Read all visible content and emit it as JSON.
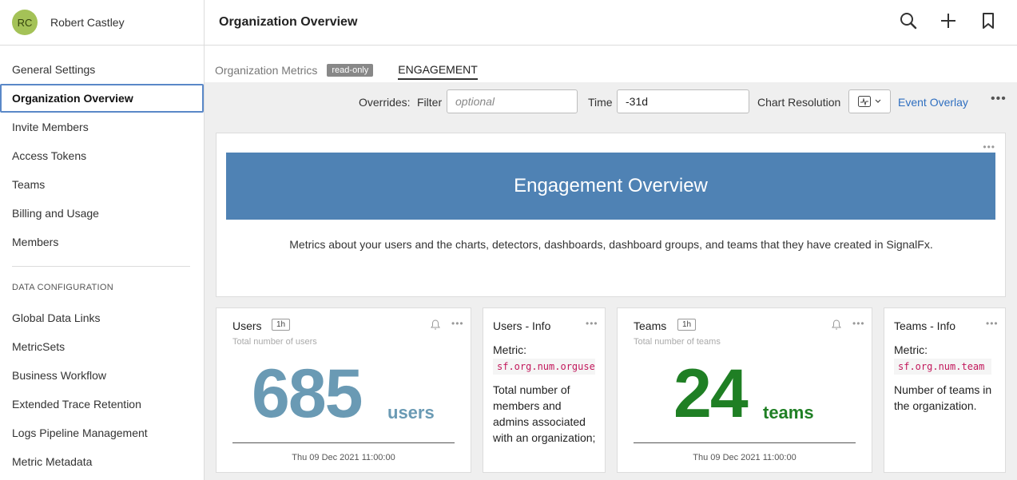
{
  "user": {
    "initials": "RC",
    "name": "Robert Castley"
  },
  "header": {
    "title": "Organization Overview"
  },
  "sidebar": {
    "items": [
      {
        "label": "General Settings"
      },
      {
        "label": "Organization Overview"
      },
      {
        "label": "Invite Members"
      },
      {
        "label": "Access Tokens"
      },
      {
        "label": "Teams"
      },
      {
        "label": "Billing and Usage"
      },
      {
        "label": "Members"
      }
    ],
    "section_title": "DATA CONFIGURATION",
    "section_items": [
      {
        "label": "Global Data Links"
      },
      {
        "label": "MetricSets"
      },
      {
        "label": "Business Workflow"
      },
      {
        "label": "Extended Trace Retention"
      },
      {
        "label": "Logs Pipeline Management"
      },
      {
        "label": "Metric Metadata"
      }
    ]
  },
  "tabs": {
    "metrics_label": "Organization Metrics",
    "badge": "read-only",
    "engagement_label": "ENGAGEMENT"
  },
  "overrides": {
    "label": "Overrides:",
    "filter_label": "Filter",
    "filter_placeholder": "optional",
    "time_label": "Time",
    "time_value": "-31d",
    "resolution_label": "Chart Resolution",
    "event_overlay": "Event Overlay"
  },
  "overview": {
    "title": "Engagement Overview",
    "description": "Metrics about your users and the charts, detectors, dashboards, dashboard groups, and teams that they have created in SignalFx."
  },
  "cards": {
    "users": {
      "title": "Users",
      "resolution": "1h",
      "subtitle": "Total number of users",
      "value": "685",
      "unit": "users",
      "date": "Thu 09 Dec 2021 11:00:00",
      "color": "#6a9ab4"
    },
    "users_info": {
      "title": "Users - Info",
      "metric_label": "Metric:",
      "metric": "sf.org.num.orguser",
      "description": "Total number of members and admins associated with an organization;"
    },
    "teams": {
      "title": "Teams",
      "resolution": "1h",
      "subtitle": "Total number of teams",
      "value": "24",
      "unit": "teams",
      "date": "Thu 09 Dec 2021 11:00:00",
      "color": "#1f7f24"
    },
    "teams_info": {
      "title": "Teams - Info",
      "metric_label": "Metric:",
      "metric": "sf.org.num.team",
      "description": "Number of teams in the organization."
    }
  },
  "colors": {
    "accent": "#2f6fc0",
    "banner": "#4f82b4",
    "avatar": "#a4c257"
  }
}
